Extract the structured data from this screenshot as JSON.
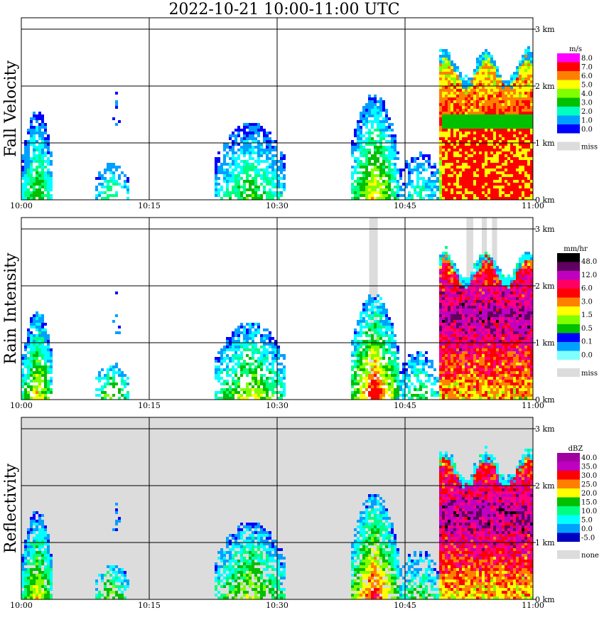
{
  "title": "2022-10-21   10:00-11:00 UTC",
  "chart_data": [
    {
      "type": "heatmap",
      "panel_title": "Fall Velocity",
      "x_tick_labels": [
        "10:00",
        "10:15",
        "10:30",
        "10:45",
        "11:00"
      ],
      "y_tick_labels": [
        "0 km",
        "1 km",
        "2 km",
        "3 km"
      ],
      "xlim": [
        "10:00",
        "11:00"
      ],
      "ylim_km": [
        0,
        3.2
      ],
      "grid": true,
      "colorbar": {
        "unit": "m/s",
        "labels": [
          "8.0",
          "7.0",
          "6.0",
          "5.0",
          "4.0",
          "3.0",
          "2.0",
          "1.0",
          "0.0"
        ],
        "colors": [
          "#ff00ff",
          "#ff0000",
          "#ff8000",
          "#ffff00",
          "#80ff00",
          "#00c000",
          "#00ffc0",
          "#00a0ff",
          "#0000ff"
        ],
        "missing_label": "miss",
        "missing_color": "#dcdcdc"
      }
    },
    {
      "type": "heatmap",
      "panel_title": "Rain Intensity",
      "x_tick_labels": [
        "10:00",
        "10:15",
        "10:30",
        "10:45",
        "11:00"
      ],
      "y_tick_labels": [
        "0 km",
        "1 km",
        "2 km",
        "3 km"
      ],
      "xlim": [
        "10:00",
        "11:00"
      ],
      "ylim_km": [
        0,
        3.2
      ],
      "grid": true,
      "colorbar": {
        "unit": "mm/hr",
        "labels": [
          "48.0",
          "12.0",
          "6.0",
          "3.0",
          "1.5",
          "0.5",
          "0.1",
          "0.0"
        ],
        "colors": [
          "#000000",
          "#600060",
          "#c000c0",
          "#ff0060",
          "#ff0000",
          "#ff8000",
          "#ffff00",
          "#80ff00",
          "#00c000",
          "#0000ff",
          "#00a0ff",
          "#80ffff"
        ],
        "missing_label": "miss",
        "missing_color": "#dcdcdc"
      }
    },
    {
      "type": "heatmap",
      "panel_title": "Reflectivity",
      "x_tick_labels": [
        "10:00",
        "10:15",
        "10:30",
        "10:45",
        "11:00"
      ],
      "y_tick_labels": [
        "0 km",
        "1 km",
        "2 km",
        "3 km"
      ],
      "xlim": [
        "10:00",
        "11:00"
      ],
      "ylim_km": [
        0,
        3.2
      ],
      "grid": true,
      "colorbar": {
        "unit": "dBZ",
        "labels": [
          "40.0",
          "35.0",
          "30.0",
          "25.0",
          "20.0",
          "15.0",
          "10.0",
          "5.0",
          "0.0",
          "-5.0"
        ],
        "colors": [
          "#a000a0",
          "#c000c0",
          "#ff0000",
          "#ff8000",
          "#ffff00",
          "#00c000",
          "#00ff80",
          "#00ffff",
          "#00a0ff",
          "#0000c0"
        ],
        "missing_label": "none",
        "missing_color": "#dcdcdc"
      }
    }
  ],
  "colors": {
    "missing": "#dcdcdc",
    "echo_palette": [
      "#0000ff",
      "#00a0ff",
      "#00ffff",
      "#00ff80",
      "#00c000",
      "#80ff00",
      "#ffff00",
      "#ff8000",
      "#ff0000",
      "#ff0080",
      "#c000c0",
      "#600060",
      "#000000"
    ]
  }
}
